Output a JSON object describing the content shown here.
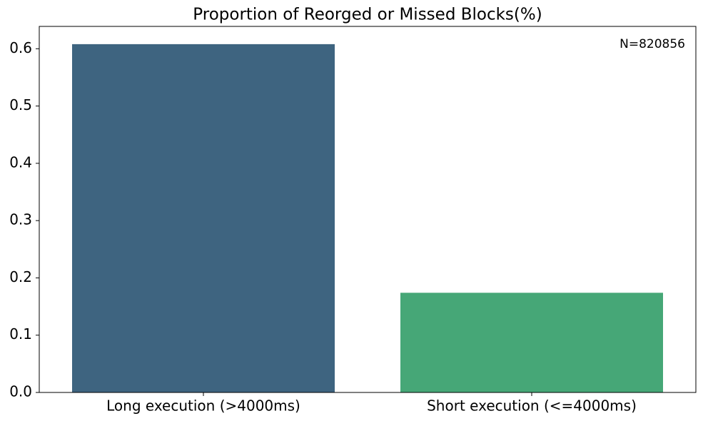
{
  "chart_data": {
    "type": "bar",
    "title": "Proportion of Reorged or Missed Blocks(%)",
    "annotation": "N=820856",
    "categories": [
      "Long execution (>4000ms)",
      "Short execution (<=4000ms)"
    ],
    "values": [
      0.608,
      0.174
    ],
    "colors": [
      "#3e6480",
      "#46a777"
    ],
    "ylim": [
      0,
      0.639
    ],
    "yticks": [
      {
        "value": 0,
        "label": "0.0"
      },
      {
        "value": 0.1,
        "label": "0.1"
      },
      {
        "value": 0.2,
        "label": "0.2"
      },
      {
        "value": 0.3,
        "label": "0.3"
      },
      {
        "value": 0.4,
        "label": "0.4"
      },
      {
        "value": 0.5,
        "label": "0.5"
      },
      {
        "value": 0.6,
        "label": "0.6"
      }
    ],
    "grid": false
  }
}
